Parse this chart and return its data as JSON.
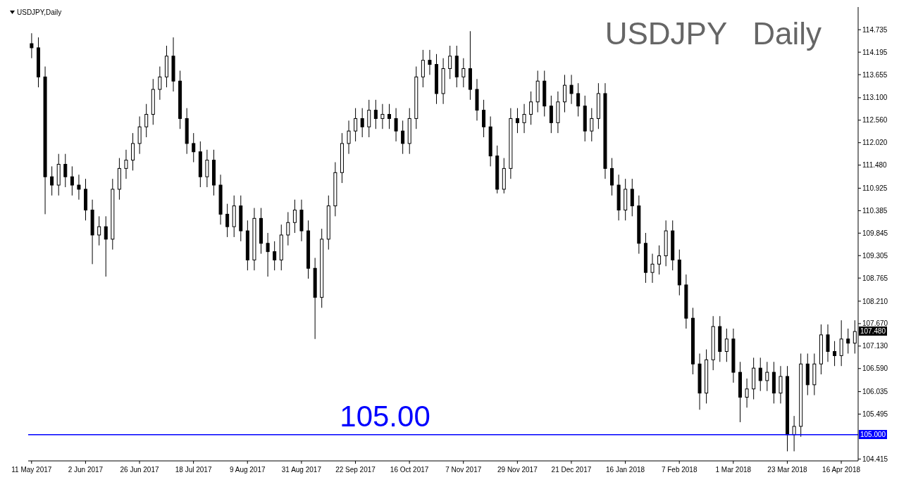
{
  "chart_data": {
    "type": "candlestick",
    "title": "USDJPY   Daily",
    "annotations": [
      "USDJPY,Daily",
      {
        "text": "107.480",
        "y": 107.48
      },
      {
        "text": "105.000",
        "y": 105.0
      }
    ],
    "color": "#000000",
    "categories": [
      "11 May 2017",
      null,
      null,
      null,
      null,
      null,
      null,
      null,
      "2 Jun 2017",
      null,
      null,
      null,
      null,
      null,
      null,
      null,
      "26 Jun 2017",
      null,
      null,
      null,
      null,
      null,
      null,
      null,
      "18 Jul 2017",
      null,
      null,
      null,
      null,
      null,
      null,
      null,
      "9 Aug 2017",
      null,
      null,
      null,
      null,
      null,
      null,
      null,
      "31 Aug 2017",
      null,
      null,
      null,
      null,
      null,
      null,
      null,
      "22 Sep 2017",
      null,
      null,
      null,
      null,
      null,
      null,
      null,
      "16 Oct 2017",
      null,
      null,
      null,
      null,
      null,
      null,
      null,
      "7 Nov 2017",
      null,
      null,
      null,
      null,
      null,
      null,
      null,
      "29 Nov 2017",
      null,
      null,
      null,
      null,
      null,
      null,
      null,
      "21 Dec 2017",
      null,
      null,
      null,
      null,
      null,
      null,
      null,
      "16 Jan 2018",
      null,
      null,
      null,
      null,
      null,
      null,
      null,
      "7 Feb 2018",
      null,
      null,
      null,
      null,
      null,
      null,
      null,
      "1 Mar 2018",
      null,
      null,
      null,
      null,
      null,
      null,
      null,
      "23 Mar 2018",
      null,
      null,
      null,
      null,
      null,
      null,
      null,
      "16 Apr 2018",
      null,
      null
    ],
    "ohlc": [
      [
        114.4,
        114.65,
        114.05,
        114.3
      ],
      [
        114.3,
        114.55,
        113.35,
        113.6
      ],
      [
        113.6,
        113.85,
        110.3,
        111.2
      ],
      [
        111.2,
        111.45,
        110.75,
        111.0
      ],
      [
        111.0,
        111.75,
        110.75,
        111.5
      ],
      [
        111.5,
        111.75,
        110.95,
        111.2
      ],
      [
        111.2,
        111.45,
        110.75,
        111.0
      ],
      [
        111.0,
        111.25,
        110.65,
        110.9
      ],
      [
        110.9,
        111.15,
        110.15,
        110.4
      ],
      [
        110.4,
        110.65,
        109.1,
        109.8
      ],
      [
        109.8,
        110.25,
        109.55,
        110.0
      ],
      [
        110.0,
        110.25,
        108.8,
        109.7
      ],
      [
        109.7,
        111.15,
        109.45,
        110.9
      ],
      [
        110.9,
        111.65,
        110.65,
        111.4
      ],
      [
        111.4,
        111.85,
        111.15,
        111.6
      ],
      [
        111.6,
        112.25,
        111.35,
        112.0
      ],
      [
        112.0,
        112.65,
        111.75,
        112.4
      ],
      [
        112.4,
        112.95,
        112.15,
        112.7
      ],
      [
        112.7,
        113.55,
        112.45,
        113.3
      ],
      [
        113.3,
        113.85,
        113.05,
        113.6
      ],
      [
        113.6,
        114.35,
        113.35,
        114.1
      ],
      [
        114.1,
        114.55,
        113.25,
        113.5
      ],
      [
        113.5,
        113.75,
        112.35,
        112.6
      ],
      [
        112.6,
        112.85,
        111.75,
        112.0
      ],
      [
        112.0,
        112.25,
        111.55,
        111.8
      ],
      [
        111.8,
        112.05,
        110.95,
        111.2
      ],
      [
        111.2,
        111.85,
        110.95,
        111.6
      ],
      [
        111.6,
        111.85,
        110.75,
        111.0
      ],
      [
        111.0,
        111.25,
        110.05,
        110.3
      ],
      [
        110.3,
        110.55,
        109.75,
        110.0
      ],
      [
        110.0,
        110.75,
        109.75,
        110.5
      ],
      [
        110.5,
        110.75,
        109.65,
        109.9
      ],
      [
        109.9,
        110.15,
        108.95,
        109.2
      ],
      [
        109.2,
        110.45,
        108.95,
        110.2
      ],
      [
        110.2,
        110.45,
        109.35,
        109.6
      ],
      [
        109.6,
        109.85,
        108.8,
        109.4
      ],
      [
        109.4,
        109.65,
        108.95,
        109.2
      ],
      [
        109.2,
        110.05,
        108.95,
        109.8
      ],
      [
        109.8,
        110.35,
        109.55,
        110.1
      ],
      [
        110.1,
        110.65,
        109.85,
        110.4
      ],
      [
        110.4,
        110.65,
        109.65,
        109.9
      ],
      [
        109.9,
        110.15,
        108.75,
        109.0
      ],
      [
        109.0,
        109.25,
        107.3,
        108.3
      ],
      [
        108.3,
        109.95,
        108.05,
        109.7
      ],
      [
        109.7,
        110.75,
        109.45,
        110.5
      ],
      [
        110.5,
        111.55,
        110.25,
        111.3
      ],
      [
        111.3,
        112.25,
        111.05,
        112.0
      ],
      [
        112.0,
        112.55,
        111.75,
        112.3
      ],
      [
        112.3,
        112.85,
        112.05,
        112.6
      ],
      [
        112.6,
        112.85,
        112.15,
        112.4
      ],
      [
        112.4,
        113.05,
        112.15,
        112.8
      ],
      [
        112.8,
        113.05,
        112.35,
        112.6
      ],
      [
        112.6,
        112.95,
        112.35,
        112.7
      ],
      [
        112.7,
        112.95,
        112.35,
        112.6
      ],
      [
        112.6,
        112.85,
        112.05,
        112.3
      ],
      [
        112.3,
        112.55,
        111.75,
        112.0
      ],
      [
        112.0,
        112.85,
        111.75,
        112.6
      ],
      [
        112.6,
        113.85,
        112.35,
        113.6
      ],
      [
        113.6,
        114.25,
        113.35,
        114.0
      ],
      [
        114.0,
        114.25,
        113.65,
        113.9
      ],
      [
        113.9,
        114.15,
        112.95,
        113.2
      ],
      [
        113.2,
        114.05,
        112.95,
        113.8
      ],
      [
        113.8,
        114.35,
        113.55,
        114.1
      ],
      [
        114.1,
        114.35,
        113.35,
        113.6
      ],
      [
        113.6,
        114.05,
        113.35,
        113.8
      ],
      [
        113.8,
        114.7,
        113.05,
        113.3
      ],
      [
        113.3,
        113.55,
        112.55,
        112.8
      ],
      [
        112.8,
        113.05,
        112.15,
        112.4
      ],
      [
        112.4,
        112.65,
        111.45,
        111.7
      ],
      [
        111.7,
        111.95,
        110.8,
        110.9
      ],
      [
        110.9,
        111.65,
        110.8,
        111.4
      ],
      [
        111.4,
        112.85,
        111.15,
        112.6
      ],
      [
        112.6,
        112.85,
        112.25,
        112.5
      ],
      [
        112.5,
        112.95,
        112.25,
        112.7
      ],
      [
        112.7,
        113.25,
        112.45,
        113.0
      ],
      [
        113.0,
        113.75,
        112.75,
        113.5
      ],
      [
        113.5,
        113.75,
        112.65,
        112.9
      ],
      [
        112.9,
        113.15,
        112.25,
        112.5
      ],
      [
        112.5,
        113.25,
        112.25,
        113.0
      ],
      [
        113.0,
        113.65,
        112.75,
        113.4
      ],
      [
        113.4,
        113.65,
        112.95,
        113.2
      ],
      [
        113.2,
        113.45,
        112.65,
        112.9
      ],
      [
        112.9,
        113.15,
        112.05,
        112.3
      ],
      [
        112.3,
        112.85,
        112.05,
        112.6
      ],
      [
        112.6,
        113.45,
        112.35,
        113.2
      ],
      [
        113.2,
        113.45,
        111.15,
        111.4
      ],
      [
        111.4,
        111.65,
        110.75,
        111.0
      ],
      [
        111.0,
        111.25,
        110.15,
        110.4
      ],
      [
        110.4,
        111.15,
        110.15,
        110.9
      ],
      [
        110.9,
        111.15,
        110.25,
        110.5
      ],
      [
        110.5,
        110.75,
        109.35,
        109.6
      ],
      [
        109.6,
        109.85,
        108.65,
        108.9
      ],
      [
        108.9,
        109.35,
        108.65,
        109.1
      ],
      [
        109.1,
        109.55,
        108.85,
        109.3
      ],
      [
        109.3,
        110.15,
        109.05,
        109.9
      ],
      [
        109.9,
        110.15,
        108.95,
        109.2
      ],
      [
        109.2,
        109.45,
        108.35,
        108.6
      ],
      [
        108.6,
        108.85,
        107.55,
        107.8
      ],
      [
        107.8,
        108.05,
        106.45,
        106.7
      ],
      [
        106.7,
        106.95,
        105.6,
        106.0
      ],
      [
        106.0,
        107.05,
        105.75,
        106.8
      ],
      [
        106.8,
        107.85,
        106.55,
        107.6
      ],
      [
        107.6,
        107.85,
        106.75,
        107.0
      ],
      [
        107.0,
        107.55,
        106.75,
        107.3
      ],
      [
        107.3,
        107.55,
        106.25,
        106.5
      ],
      [
        106.5,
        106.75,
        105.3,
        105.9
      ],
      [
        105.9,
        106.35,
        105.65,
        106.1
      ],
      [
        106.1,
        106.85,
        105.85,
        106.6
      ],
      [
        106.6,
        106.85,
        106.05,
        106.3
      ],
      [
        106.3,
        106.75,
        106.05,
        106.5
      ],
      [
        106.5,
        106.75,
        105.75,
        106.0
      ],
      [
        106.0,
        106.65,
        105.75,
        106.4
      ],
      [
        106.4,
        106.65,
        104.6,
        105.0
      ],
      [
        105.0,
        105.45,
        104.6,
        105.2
      ],
      [
        105.2,
        106.95,
        104.95,
        106.7
      ],
      [
        106.7,
        106.95,
        105.95,
        106.2
      ],
      [
        106.2,
        106.95,
        105.95,
        106.7
      ],
      [
        106.7,
        107.65,
        106.45,
        107.4
      ],
      [
        107.4,
        107.65,
        106.75,
        107.0
      ],
      [
        107.0,
        107.25,
        106.65,
        106.9
      ],
      [
        106.9,
        107.75,
        106.65,
        107.3
      ],
      [
        107.3,
        107.55,
        106.95,
        107.2
      ],
      [
        107.2,
        107.75,
        106.95,
        107.48
      ]
    ],
    "ylim": [
      104.37,
      115.28
    ],
    "yticks": [
      {
        "value": 114.735,
        "label": "114.735"
      },
      {
        "value": 114.195,
        "label": "114.195"
      },
      {
        "value": 113.655,
        "label": "113.655"
      },
      {
        "value": 113.1,
        "label": "113.100"
      },
      {
        "value": 112.56,
        "label": "112.560"
      },
      {
        "value": 112.02,
        "label": "112.020"
      },
      {
        "value": 111.48,
        "label": "111.480"
      },
      {
        "value": 110.925,
        "label": "110.925"
      },
      {
        "value": 110.385,
        "label": "110.385"
      },
      {
        "value": 109.845,
        "label": "109.845"
      },
      {
        "value": 109.305,
        "label": "109.305"
      },
      {
        "value": 108.765,
        "label": "108.765"
      },
      {
        "value": 108.21,
        "label": "108.210"
      },
      {
        "value": 107.67,
        "label": "107.670"
      },
      {
        "value": 107.13,
        "label": "107.130"
      },
      {
        "value": 106.59,
        "label": "106.590"
      },
      {
        "value": 106.035,
        "label": "106.035"
      },
      {
        "value": 105.495,
        "label": "105.495"
      },
      {
        "value": 104.415,
        "label": "104.415"
      }
    ],
    "ref_lines": [
      {
        "axis": "y",
        "value": 105.0,
        "label": "105.00",
        "color": "#0000ff"
      }
    ]
  }
}
